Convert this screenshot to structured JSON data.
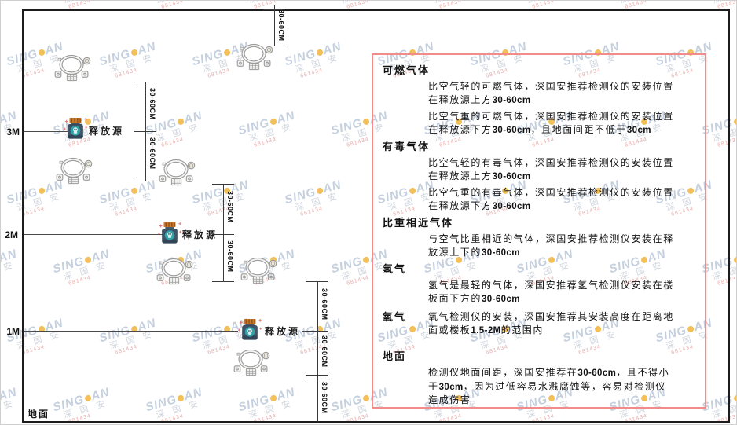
{
  "watermark": {
    "brand_left": "SING",
    "brand_right": "AN",
    "cjk": "深 国 安",
    "red_text": "681434",
    "brand_color": "#bcc8da",
    "dot_color": "#f2b43c",
    "red_color": "#e6a0a0"
  },
  "diagram": {
    "height_labels": [
      {
        "label": "3M"
      },
      {
        "label": "2M"
      },
      {
        "label": "1M"
      }
    ],
    "ground_label": "地面",
    "release_source_label": "释放源",
    "dim_label": "30-60CM",
    "colors": {
      "frame": "#1c1c1c",
      "release_body": "#3f5468",
      "release_lid": "#c9792c",
      "release_circle": "#2fa3a6",
      "detector_outline": "#9a9a9a",
      "plus_marks": "#e07070"
    }
  },
  "panel": {
    "border_color": "#f48b8b",
    "sections": [
      {
        "header": "可燃气体",
        "paragraphs": [
          [
            {
              "t": "比空气轻的可燃气体，深国安推荐检测仪的安装位置在释放源上方"
            },
            {
              "t": "30-60cm",
              "b": true
            }
          ],
          [
            {
              "t": "比空气重的可燃气体，深国安推荐检测仪的安装位置在释放源下方"
            },
            {
              "t": "30-60cm",
              "b": true
            },
            {
              "t": "，且地面间距不低于"
            },
            {
              "t": "30cm",
              "b": true
            }
          ]
        ]
      },
      {
        "header": "有毒气体",
        "paragraphs": [
          [
            {
              "t": "比空气轻的有毒气体，深国安推荐检测仪的安装位置在释放源上方"
            },
            {
              "t": "30-60cm",
              "b": true
            }
          ],
          [
            {
              "t": "比空气重的有毒气体，深国安推荐检测仪的安装位置在释放源下方"
            },
            {
              "t": "30-60cm",
              "b": true
            }
          ]
        ]
      },
      {
        "header": "比重相近气体",
        "paragraphs": [
          [
            {
              "t": "与空气比重相近的气体，深国安推荐检测仪安装在释放源上下的"
            },
            {
              "t": "30-60cm",
              "b": true
            }
          ]
        ]
      },
      {
        "header": "氢气",
        "paragraphs": [
          [
            {
              "t": "氢气是最轻的气体，深国安推荐氢气检测仪安装在楼板面下方的"
            },
            {
              "t": "30-60cm",
              "b": true
            }
          ]
        ]
      },
      {
        "header": "氧气",
        "inline": true,
        "paragraphs": [
          [
            {
              "t": "氧气检测仪的安装，深国安推荐其安装高度在距离地面或楼板"
            },
            {
              "t": "1.5-2M",
              "b": true
            },
            {
              "t": "的范围内"
            }
          ]
        ]
      },
      {
        "header": "地面",
        "paragraphs": [
          [
            {
              "t": "检测仪地面间距，深国安推荐在"
            },
            {
              "t": "30-60cm",
              "b": true
            },
            {
              "t": "，且不得小于"
            },
            {
              "t": "30cm",
              "b": true
            },
            {
              "t": "，因为过低容易水溅腐蚀等，容易对检测仪造成伤害"
            }
          ]
        ]
      }
    ]
  }
}
